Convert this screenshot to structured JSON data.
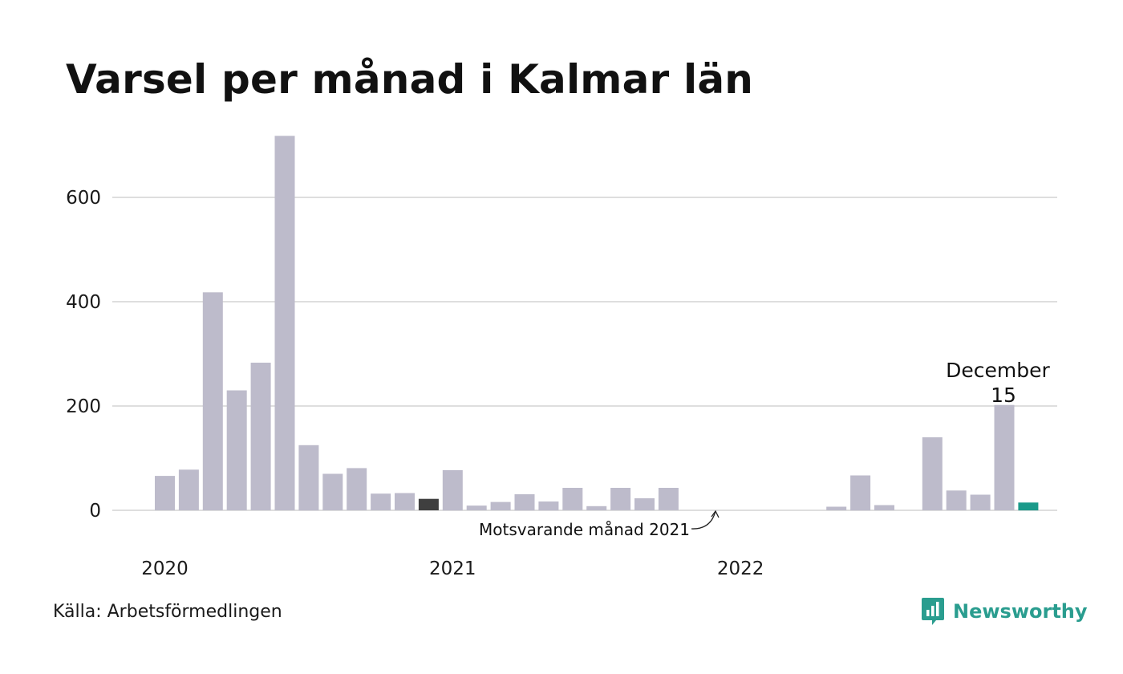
{
  "title": "Varsel per månad i Kalmar län",
  "source": "Källa: Arbetsförmedlingen",
  "brand": "Newsworthy",
  "colors": {
    "bar": "#bdbbcb",
    "reference": "#3f3f3f",
    "current": "#1a9a8a",
    "grid": "#dedede",
    "brand": "#2a9d8f"
  },
  "chart_data": {
    "type": "bar",
    "x_labels": [
      {
        "label": "2020",
        "index": 0
      },
      {
        "label": "2021",
        "index": 12
      },
      {
        "label": "2022",
        "index": 24
      }
    ],
    "values": [
      66,
      78,
      418,
      230,
      283,
      718,
      125,
      70,
      81,
      32,
      33,
      22,
      77,
      9,
      16,
      31,
      17,
      43,
      8,
      43,
      23,
      43,
      0,
      0,
      0,
      0,
      0,
      0,
      7,
      67,
      10,
      0,
      140,
      38,
      30,
      202,
      15
    ],
    "y_ticks": [
      0,
      200,
      400,
      600
    ],
    "ylim": [
      0,
      720
    ],
    "grid": true,
    "reference_index": 11,
    "current_index": 36,
    "annotation": {
      "label": "December",
      "value": "15"
    },
    "reference_label": "Motsvarande månad 2021"
  }
}
